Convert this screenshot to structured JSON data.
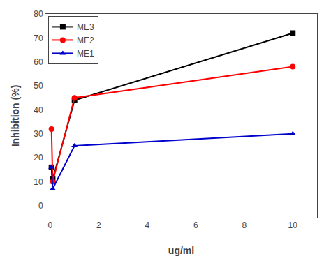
{
  "chart_data": {
    "type": "line",
    "x": [
      0.05,
      0.1,
      1,
      10
    ],
    "series": [
      {
        "name": "ME3",
        "color": "#000000",
        "marker": "square",
        "values": [
          16,
          11,
          44,
          72
        ]
      },
      {
        "name": "ME2",
        "color": "#ff0000",
        "marker": "circle",
        "values": [
          32,
          10,
          45,
          58
        ]
      },
      {
        "name": "ME1",
        "color": "#0000cc",
        "marker": "triangle",
        "values": [
          16,
          7,
          25,
          30
        ]
      }
    ],
    "xlabel": "ug/ml",
    "ylabel": "Inhibition (%)",
    "xlim": [
      -0.2,
      11
    ],
    "xticks": [
      0,
      2,
      4,
      6,
      8,
      10
    ],
    "ylim": [
      -5,
      80
    ],
    "yticks": [
      0,
      10,
      20,
      30,
      40,
      50,
      60,
      70,
      80
    ],
    "grid": false,
    "legend": "upper left"
  }
}
